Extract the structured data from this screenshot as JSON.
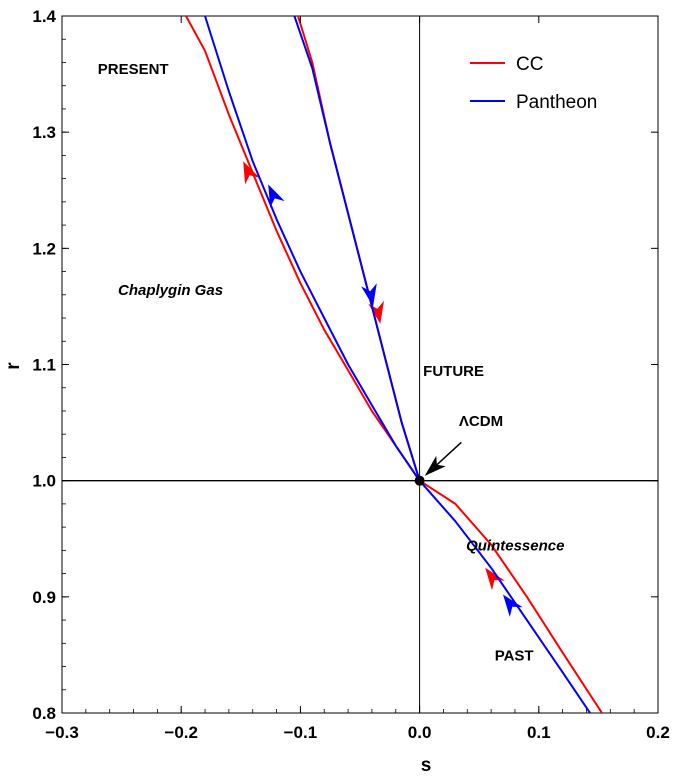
{
  "chart_data": {
    "type": "line",
    "title": "",
    "xlabel": "s",
    "ylabel": "r",
    "xlim": [
      -0.3,
      0.2
    ],
    "ylim": [
      0.8,
      1.4
    ],
    "xticks": [
      -0.3,
      -0.2,
      -0.1,
      0.0,
      0.1,
      0.2
    ],
    "xtick_labels": [
      "−0.3",
      "−0.2",
      "−0.1",
      "0.0",
      "0.1",
      "0.2"
    ],
    "yticks": [
      0.8,
      0.9,
      1.0,
      1.1,
      1.2,
      1.3,
      1.4
    ],
    "ytick_labels": [
      "0.8",
      "0.9",
      "1.0",
      "1.1",
      "1.2",
      "1.3",
      "1.4"
    ],
    "grid": false,
    "legend_position": "top-right",
    "reference_lines": [
      {
        "axis": "x",
        "value": 0.0
      },
      {
        "axis": "y",
        "value": 1.0
      }
    ],
    "fixed_point": {
      "label": "ΛCDM",
      "x": 0.0,
      "y": 1.0
    },
    "series": [
      {
        "name": "CC",
        "color": "#ff0000",
        "branches": [
          {
            "x": [
              0.153,
              0.12,
              0.09,
              0.06,
              0.03,
              0.0,
              -0.02,
              -0.04,
              -0.06,
              -0.08,
              -0.1,
              -0.12,
              -0.14,
              -0.16,
              -0.18,
              -0.196
            ],
            "y": [
              0.8,
              0.852,
              0.9,
              0.945,
              0.98,
              1.0,
              1.03,
              1.06,
              1.095,
              1.13,
              1.17,
              1.215,
              1.265,
              1.315,
              1.37,
              1.4
            ]
          },
          {
            "x": [
              0.0,
              -0.015,
              -0.03,
              -0.045,
              -0.06,
              -0.075,
              -0.09,
              -0.102
            ],
            "y": [
              1.0,
              1.05,
              1.11,
              1.17,
              1.23,
              1.29,
              1.36,
              1.4
            ]
          }
        ],
        "arrows": [
          {
            "x": -0.148,
            "y": 1.275,
            "direction": "up-left"
          },
          {
            "x": -0.033,
            "y": 1.135,
            "direction": "down-right"
          },
          {
            "x": 0.055,
            "y": 0.925,
            "direction": "up-left"
          }
        ]
      },
      {
        "name": "Pantheon",
        "color": "#0000ff",
        "branches": [
          {
            "x": [
              0.143,
              0.12,
              0.09,
              0.06,
              0.03,
              0.0,
              -0.02,
              -0.04,
              -0.06,
              -0.08,
              -0.1,
              -0.12,
              -0.14,
              -0.16,
              -0.18
            ],
            "y": [
              0.8,
              0.835,
              0.88,
              0.925,
              0.965,
              1.0,
              1.03,
              1.065,
              1.1,
              1.14,
              1.18,
              1.225,
              1.275,
              1.335,
              1.4
            ]
          },
          {
            "x": [
              0.0,
              -0.015,
              -0.03,
              -0.045,
              -0.06,
              -0.075,
              -0.09,
              -0.105
            ],
            "y": [
              1.0,
              1.05,
              1.11,
              1.17,
              1.23,
              1.29,
              1.355,
              1.4
            ]
          }
        ],
        "arrows": [
          {
            "x": -0.127,
            "y": 1.255,
            "direction": "up-left"
          },
          {
            "x": -0.039,
            "y": 1.15,
            "direction": "down-right"
          },
          {
            "x": 0.07,
            "y": 0.902,
            "direction": "up-left"
          }
        ]
      }
    ],
    "annotations": [
      {
        "text": "PRESENT",
        "x": -0.27,
        "y": 1.35,
        "italic": false
      },
      {
        "text": "Chaplygin Gas",
        "x": -0.253,
        "y": 1.16,
        "italic": true
      },
      {
        "text": "FUTURE",
        "x": 0.003,
        "y": 1.09,
        "italic": false
      },
      {
        "text": "ΛCDM",
        "x": 0.033,
        "y": 1.047,
        "italic": false
      },
      {
        "text": "Quintessence",
        "x": 0.039,
        "y": 0.94,
        "italic": true
      },
      {
        "text": "PAST",
        "x": 0.063,
        "y": 0.845,
        "italic": false
      }
    ]
  }
}
